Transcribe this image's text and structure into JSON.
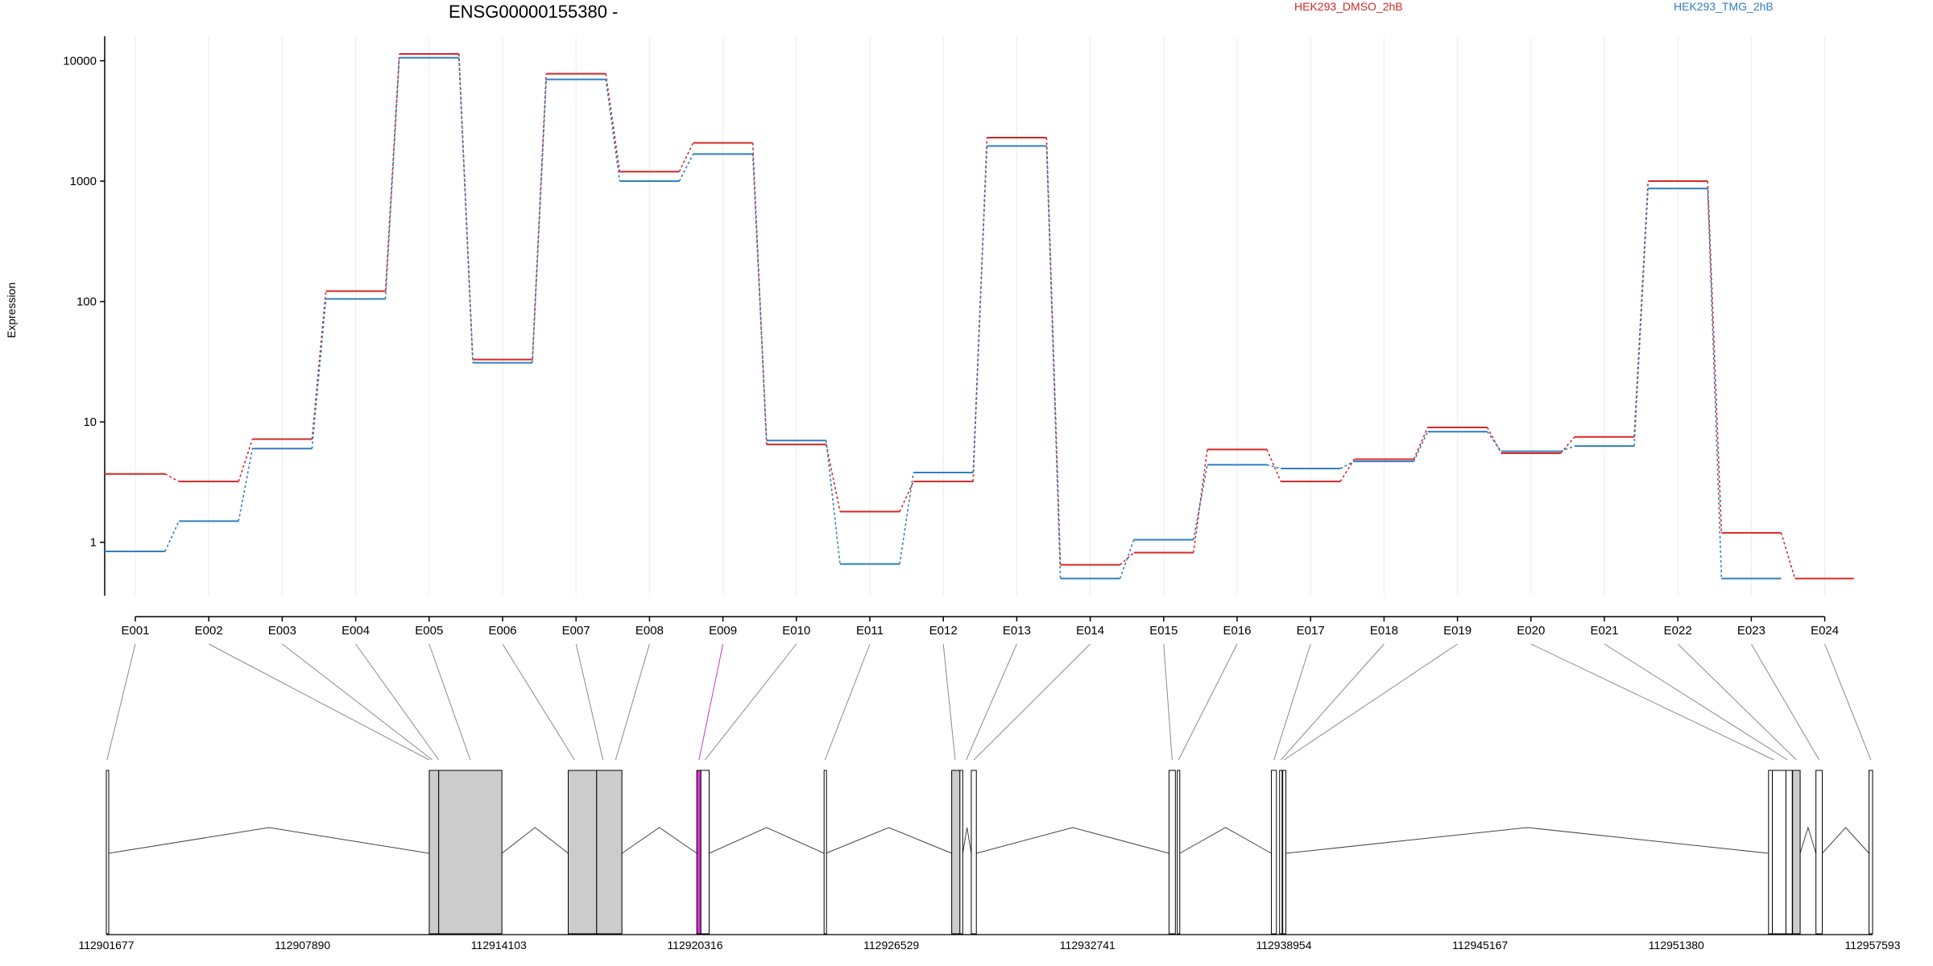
{
  "chart_data": {
    "type": "line",
    "title": "ENSG00000155380 -",
    "ylabel": "Expression",
    "yscale": "log",
    "ylim": [
      0.36,
      16000
    ],
    "yticks": [
      1,
      10,
      100,
      1000,
      10000
    ],
    "ytick_labels": [
      "1",
      "10",
      "100",
      "1000",
      "10000"
    ],
    "categories": [
      "E001",
      "E002",
      "E003",
      "E004",
      "E005",
      "E006",
      "E007",
      "E008",
      "E009",
      "E010",
      "E011",
      "E012",
      "E013",
      "E014",
      "E015",
      "E016",
      "E017",
      "E018",
      "E019",
      "E020",
      "E021",
      "E022",
      "E023",
      "E024"
    ],
    "highlighted_exon": "E009",
    "grid": true,
    "legend_position": "top-right",
    "series": [
      {
        "name": "HEK293_DMSO_2hB",
        "color": "#d62728",
        "values": [
          3.7,
          3.2,
          7.2,
          122,
          11400,
          33,
          7800,
          1200,
          2080,
          6.5,
          1.8,
          3.2,
          2300,
          0.65,
          0.82,
          5.9,
          3.2,
          4.9,
          9,
          5.5,
          7.5,
          1000,
          1.2,
          0.5
        ]
      },
      {
        "name": "HEK293_TMG_2hB",
        "color": "#2f7fc1",
        "values": [
          0.84,
          1.5,
          6,
          105,
          10600,
          31,
          7000,
          1000,
          1680,
          7,
          0.66,
          3.8,
          1960,
          0.5,
          1.05,
          4.4,
          4.1,
          4.7,
          8.3,
          5.7,
          6.3,
          870,
          0.5,
          null
        ]
      }
    ],
    "genomic_axis": {
      "tick_labels": [
        "112901677",
        "112907890",
        "112914103",
        "112920316",
        "112926529",
        "112932741",
        "112938954",
        "112945167",
        "112951380",
        "112957593"
      ],
      "range": [
        112901677,
        112957593
      ]
    },
    "gene_model": {
      "exons": [
        {
          "start": 112901677,
          "end": 112901750,
          "fill": "white"
        },
        {
          "start": 112911900,
          "end": 112912200,
          "fill": "gray"
        },
        {
          "start": 112912200,
          "end": 112914200,
          "fill": "gray"
        },
        {
          "start": 112916300,
          "end": 112917200,
          "fill": "gray"
        },
        {
          "start": 112917200,
          "end": 112918000,
          "fill": "gray"
        },
        {
          "start": 112920370,
          "end": 112920500,
          "fill": "magenta"
        },
        {
          "start": 112920500,
          "end": 112920760,
          "fill": "white"
        },
        {
          "start": 112924400,
          "end": 112924460,
          "fill": "white"
        },
        {
          "start": 112928440,
          "end": 112928700,
          "fill": "gray"
        },
        {
          "start": 112928700,
          "end": 112928790,
          "fill": "white"
        },
        {
          "start": 112929060,
          "end": 112929220,
          "fill": "white"
        },
        {
          "start": 112935320,
          "end": 112935520,
          "fill": "white"
        },
        {
          "start": 112935580,
          "end": 112935660,
          "fill": "white"
        },
        {
          "start": 112938560,
          "end": 112938720,
          "fill": "white"
        },
        {
          "start": 112938820,
          "end": 112938900,
          "fill": "white"
        },
        {
          "start": 112938920,
          "end": 112939020,
          "fill": "white"
        },
        {
          "start": 112954300,
          "end": 112954420,
          "fill": "white"
        },
        {
          "start": 112954420,
          "end": 112954850,
          "fill": "white"
        },
        {
          "start": 112954850,
          "end": 112955050,
          "fill": "white"
        },
        {
          "start": 112955060,
          "end": 112955300,
          "fill": "gray"
        },
        {
          "start": 112955800,
          "end": 112956000,
          "fill": "white"
        },
        {
          "start": 112957480,
          "end": 112957593,
          "fill": "white"
        }
      ],
      "exon_bin_positions": [
        112901700,
        112911900,
        112912000,
        112912200,
        112913200,
        112916500,
        112917400,
        112917800,
        112920440,
        112920630,
        112924430,
        112928550,
        112928900,
        112929140,
        112935420,
        112935620,
        112938640,
        112938860,
        112938960,
        112954470,
        112954900,
        112955180,
        112955900,
        112957540
      ]
    }
  }
}
